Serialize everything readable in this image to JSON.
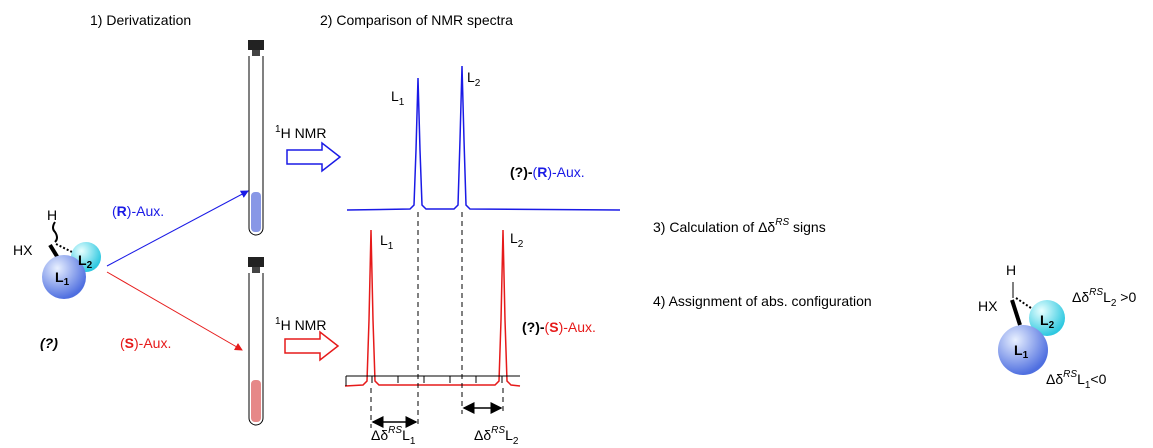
{
  "steps": {
    "derivatization": "1) Derivatization",
    "comparison": "2) Comparison of NMR spectra",
    "calculation": {
      "text": "3) Calculation of ",
      "delta": "Δδ",
      "sup": "RS",
      "tail": " signs"
    },
    "assignment": "4) Assignment of abs. configuration"
  },
  "substrate": {
    "h": "H",
    "hx": "HX",
    "l1": "L",
    "l1_sub": "1",
    "l2": "L",
    "l2_sub": "2",
    "unknown": "(?)"
  },
  "reagents": {
    "r": [
      "(",
      "R",
      ")-Aux."
    ],
    "s": [
      "(",
      "S",
      ")-Aux."
    ]
  },
  "nmr": {
    "sup": "1",
    "text": "H NMR"
  },
  "products": {
    "r": [
      "(?)-",
      "(",
      "R",
      ")-Aux."
    ],
    "s": [
      "(?)-",
      "(",
      "S",
      ")-Aux."
    ]
  },
  "peaks": {
    "l": "L",
    "one": "1",
    "two": "2"
  },
  "deltas": {
    "delta": "Δδ",
    "sup": "RS",
    "l": "L",
    "one": "1",
    "two": "2"
  },
  "result": {
    "h": "H",
    "hx": "HX",
    "l": "L",
    "one": "1",
    "two": "2",
    "delta": "Δδ",
    "sup": "RS",
    "l2_sign": " >0",
    "l1_sign": "<0"
  }
}
